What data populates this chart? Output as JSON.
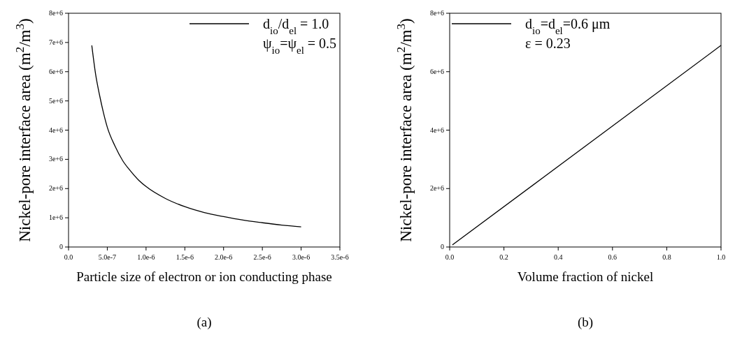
{
  "chart_data": [
    {
      "type": "line",
      "xlabel": "Particle size of electron or ion conducting phase",
      "ylabel": "Nickel-pore interface area (m$^{2}$/m$^{3}$)",
      "series": [
        {
          "name": "d$_{io}$/d$_{el}$ = 1.0",
          "color": "#000000",
          "x": [
            3e-07,
            3.5e-07,
            4e-07,
            4.5e-07,
            5e-07,
            6e-07,
            7e-07,
            8e-07,
            9e-07,
            1e-06,
            1.25e-06,
            1.5e-06,
            1.75e-06,
            2e-06,
            2.25e-06,
            2.5e-06,
            2.75e-06,
            3e-06
          ],
          "values": [
            6900000,
            5900000,
            5200000,
            4600000,
            4100000,
            3450000,
            2950000,
            2600000,
            2300000,
            2070000,
            1660000,
            1380000,
            1180000,
            1040000,
            920000,
            830000,
            750000,
            690000
          ]
        }
      ],
      "xlim": [
        0,
        3.5e-06
      ],
      "xticks": [
        {
          "value": 0,
          "label": "0.0"
        },
        {
          "value": 5e-07,
          "label": "5.0e-7"
        },
        {
          "value": 1e-06,
          "label": "1.0e-6"
        },
        {
          "value": 1.5e-06,
          "label": "1.5e-6"
        },
        {
          "value": 2e-06,
          "label": "2.0e-6"
        },
        {
          "value": 2.5e-06,
          "label": "2.5e-6"
        },
        {
          "value": 3e-06,
          "label": "3.0e-6"
        },
        {
          "value": 3.5e-06,
          "label": "3.5e-6"
        }
      ],
      "ylim": [
        0,
        8000000
      ],
      "yticks": [
        0,
        {
          "value": 1000000,
          "label": "1e+6"
        },
        {
          "value": 2000000,
          "label": "2e+6"
        },
        {
          "value": 3000000,
          "label": "3e+6"
        },
        {
          "value": 4000000,
          "label": "4e+6"
        },
        {
          "value": 5000000,
          "label": "5e+6"
        },
        {
          "value": 6000000,
          "label": "6e+6"
        },
        {
          "value": 7000000,
          "label": "7e+6"
        },
        {
          "value": 8000000,
          "label": "8e+6"
        }
      ],
      "legend": "top right",
      "annotations": [
        "ψ$_{io}$=ψ$_{el}$ = 0.5",
        "(a)"
      ]
    },
    {
      "type": "line",
      "xlabel": "Volume fraction of nickel",
      "ylabel": "Nickel-pore interface area (m$^{2}$/m$^{3}$)",
      "series": [
        {
          "name": "d$_{io}$=d$_{el}$=0.6 μm",
          "color": "#000000",
          "x": [
            0.01,
            1.0
          ],
          "values": [
            70000,
            6900000
          ]
        }
      ],
      "xlim": [
        0,
        1
      ],
      "xticks": [
        {
          "value": 0,
          "label": "0.0"
        },
        {
          "value": 0.2,
          "label": "0.2"
        },
        {
          "value": 0.4,
          "label": "0.4"
        },
        {
          "value": 0.6,
          "label": "0.6"
        },
        {
          "value": 0.8,
          "label": "0.8"
        },
        {
          "value": 1,
          "label": "1.0"
        }
      ],
      "ylim": [
        0,
        8000000
      ],
      "yticks": [
        0,
        {
          "value": 2000000,
          "label": "2e+6"
        },
        {
          "value": 4000000,
          "label": "4e+6"
        },
        {
          "value": 6000000,
          "label": "6e+6"
        },
        {
          "value": 8000000,
          "label": "8e+6"
        }
      ],
      "legend": "top left",
      "annotations": [
        "ε = 0.23",
        "(b)"
      ]
    }
  ]
}
